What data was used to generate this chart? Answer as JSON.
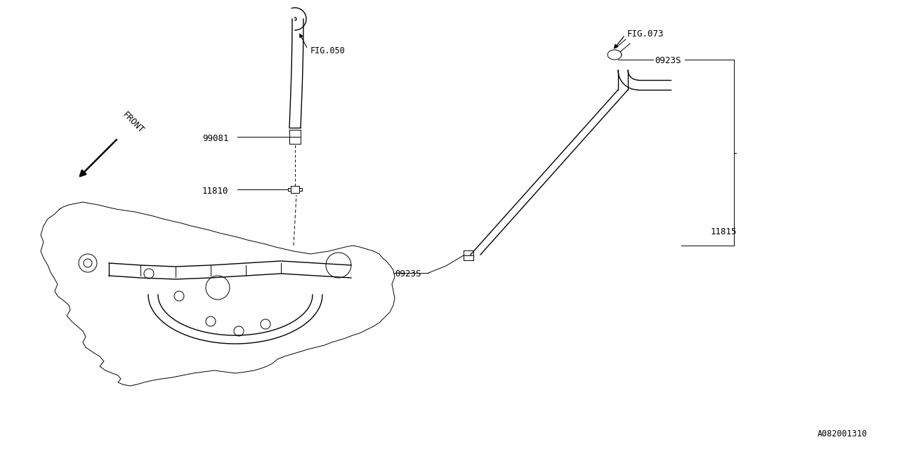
{
  "bg_color": "#ffffff",
  "line_color": "#000000",
  "fig_width": 12.8,
  "fig_height": 6.4,
  "labels": {
    "fig050": "FIG.050",
    "fig073": "FIG.073",
    "part99081": "99081",
    "part11810": "11810",
    "part11815": "11815",
    "part0923s_top": "0923S",
    "part0923s_bottom": "0923S",
    "front": "FRONT",
    "drawing_no": "A082001310"
  }
}
